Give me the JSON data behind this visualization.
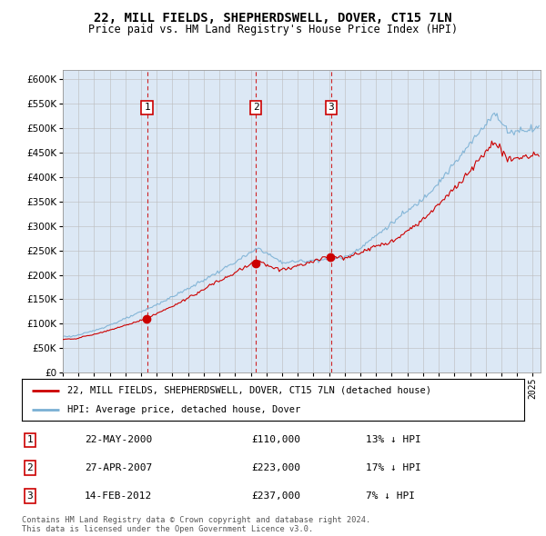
{
  "title": "22, MILL FIELDS, SHEPHERDSWELL, DOVER, CT15 7LN",
  "subtitle": "Price paid vs. HM Land Registry's House Price Index (HPI)",
  "legend_line1": "22, MILL FIELDS, SHEPHERDSWELL, DOVER, CT15 7LN (detached house)",
  "legend_line2": "HPI: Average price, detached house, Dover",
  "footer1": "Contains HM Land Registry data © Crown copyright and database right 2024.",
  "footer2": "This data is licensed under the Open Government Licence v3.0.",
  "sale_color": "#cc0000",
  "hpi_color": "#7ab0d4",
  "background_color": "#dce8f5",
  "ylim": [
    0,
    620000
  ],
  "yticks": [
    0,
    50000,
    100000,
    150000,
    200000,
    250000,
    300000,
    350000,
    400000,
    450000,
    500000,
    550000,
    600000
  ],
  "sales": [
    {
      "num": 1,
      "date": "22-MAY-2000",
      "price": 110000,
      "hpi_pct": "13%",
      "x_year": 2000.38
    },
    {
      "num": 2,
      "date": "27-APR-2007",
      "price": 223000,
      "hpi_pct": "17%",
      "x_year": 2007.32
    },
    {
      "num": 3,
      "date": "14-FEB-2012",
      "price": 237000,
      "hpi_pct": "7%",
      "x_year": 2012.12
    }
  ],
  "xmin": 1995.0,
  "xmax": 2025.5
}
